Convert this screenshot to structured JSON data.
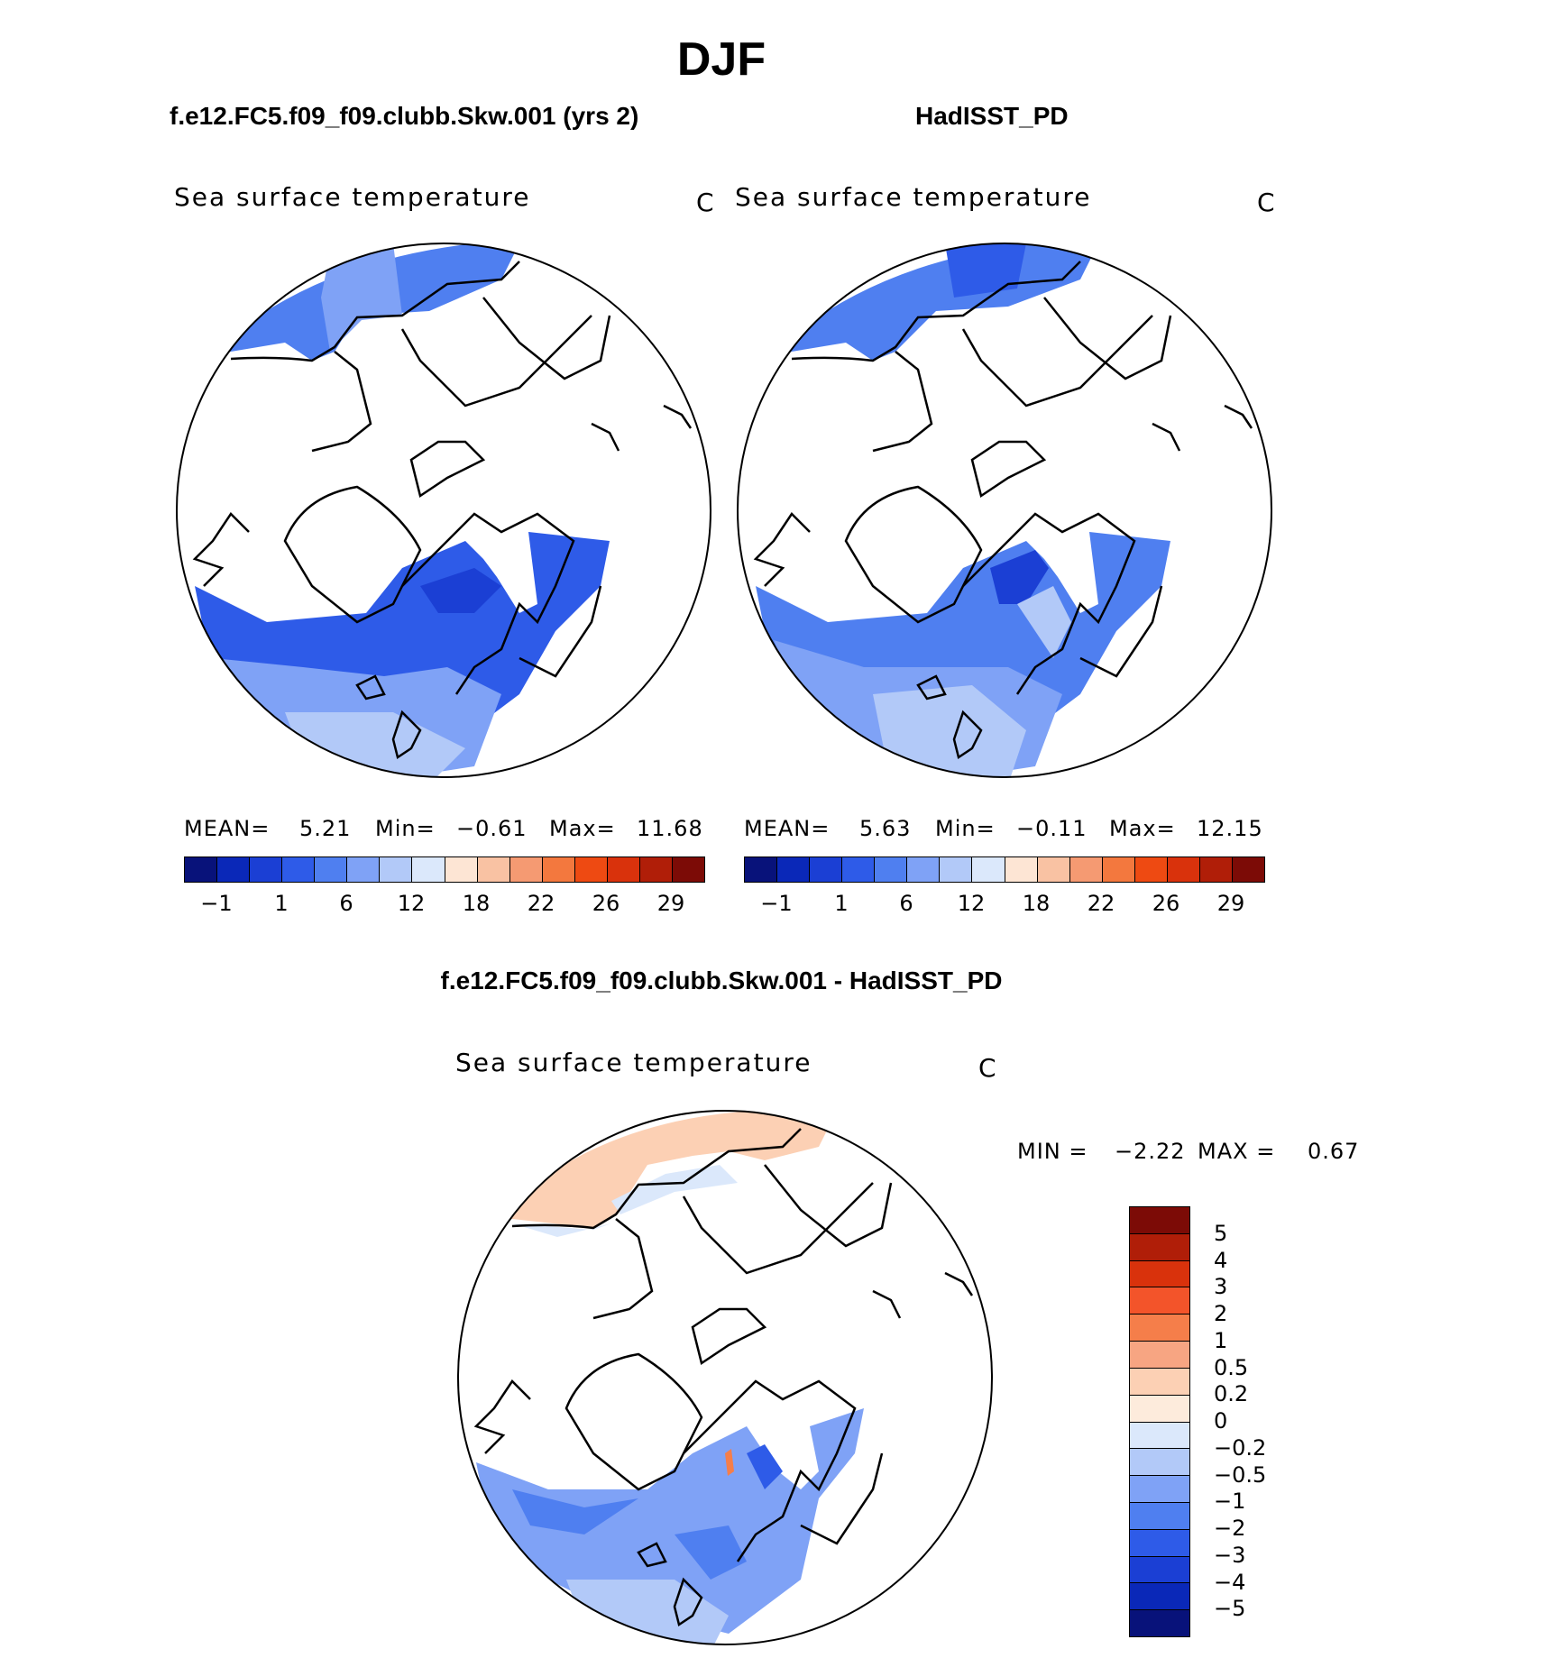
{
  "season": "DJF",
  "colors": {
    "abs": [
      "#08127a",
      "#0a28b8",
      "#1b3fd4",
      "#2e5be8",
      "#4f7ff0",
      "#7fa2f6",
      "#b2c9f8",
      "#dbe8fb",
      "#fde5d4",
      "#f9c2a3",
      "#f59a72",
      "#f3783e",
      "#ee4a12",
      "#d9320c",
      "#b01e08",
      "#7c0b06"
    ],
    "diff": [
      "#7c0b06",
      "#b01e08",
      "#d9320c",
      "#f3542a",
      "#f57e4a",
      "#f7a582",
      "#fcd0b4",
      "#fdebdc",
      "#dbe8fb",
      "#b2c9f8",
      "#7fa2f6",
      "#4f7ff0",
      "#2e5be8",
      "#1b3fd4",
      "#0a28b8",
      "#08127a"
    ]
  },
  "panels": [
    {
      "case": "f.e12.FC5.f09_f09.clubb.Skw.001 (yrs 2)",
      "field": "Sea surface temperature",
      "unit": "C",
      "mean_label": "MEAN=",
      "mean": "5.21",
      "min_label": "Min=",
      "min": "−0.61",
      "max_label": "Max=",
      "max": "11.68",
      "ticks": [
        "−1",
        "1",
        "6",
        "12",
        "18",
        "22",
        "26",
        "29"
      ]
    },
    {
      "case": "HadISST_PD",
      "field": "Sea surface temperature",
      "unit": "C",
      "mean_label": "MEAN=",
      "mean": "5.63",
      "min_label": "Min=",
      "min": "−0.11",
      "max_label": "Max=",
      "max": "12.15",
      "ticks": [
        "−1",
        "1",
        "6",
        "12",
        "18",
        "22",
        "26",
        "29"
      ]
    }
  ],
  "difference": {
    "title": "f.e12.FC5.f09_f09.clubb.Skw.001 - HadISST_PD",
    "field": "Sea surface temperature",
    "unit": "C",
    "min_label": "MIN =",
    "min": "−2.22",
    "max_label": "MAX =",
    "max": "0.67",
    "levels": [
      "5",
      "4",
      "3",
      "2",
      "1",
      "0.5",
      "0.2",
      "0",
      "−0.2",
      "−0.5",
      "−1",
      "−2",
      "−3",
      "−4",
      "−5"
    ]
  },
  "chart_data": [
    {
      "type": "heatmap",
      "title": "f.e12.FC5.f09_f09.clubb.Skw.001 (yrs 2)",
      "variable": "Sea surface temperature",
      "unit": "C",
      "projection": "north polar stereographic",
      "mean": 5.21,
      "min": -0.61,
      "max": 11.68,
      "colorbar_ticks": [
        -1,
        1,
        6,
        12,
        18,
        22,
        26,
        29
      ]
    },
    {
      "type": "heatmap",
      "title": "HadISST_PD",
      "variable": "Sea surface temperature",
      "unit": "C",
      "projection": "north polar stereographic",
      "mean": 5.63,
      "min": -0.11,
      "max": 12.15,
      "colorbar_ticks": [
        -1,
        1,
        6,
        12,
        18,
        22,
        26,
        29
      ]
    },
    {
      "type": "heatmap",
      "title": "f.e12.FC5.f09_f09.clubb.Skw.001 - HadISST_PD",
      "variable": "Sea surface temperature",
      "unit": "C",
      "projection": "north polar stereographic",
      "min": -2.22,
      "max": 0.67,
      "colorbar_levels": [
        5,
        4,
        3,
        2,
        1,
        0.5,
        0.2,
        0,
        -0.2,
        -0.5,
        -1,
        -2,
        -3,
        -4,
        -5
      ]
    }
  ]
}
